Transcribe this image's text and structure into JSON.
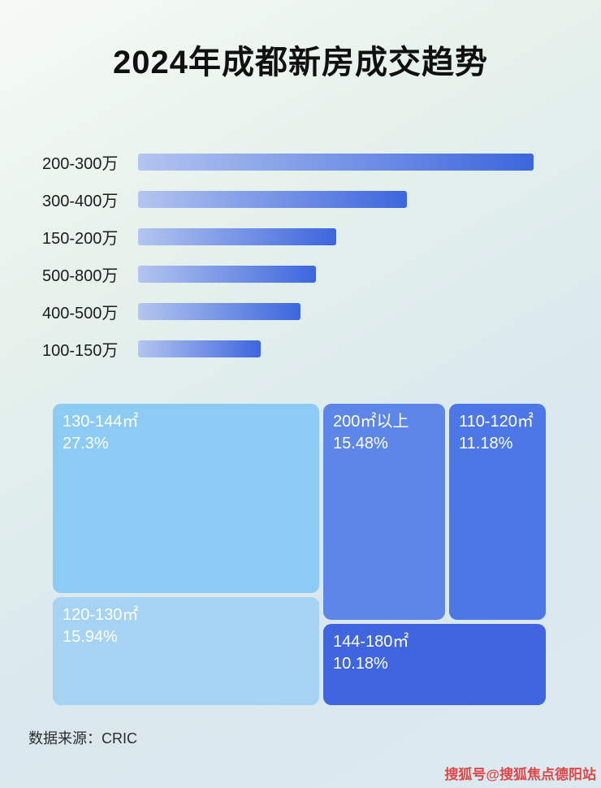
{
  "page": {
    "title": "2024年成都新房成交趋势",
    "source_text": "数据来源：CRIC",
    "watermark": "搜狐号@搜狐焦点德阳站"
  },
  "bar_chart": {
    "bar_gradient_start": "#b3c5ef",
    "bar_gradient_end": "#3d66de",
    "rows": [
      {
        "label": "200-300万",
        "value": 100
      },
      {
        "label": "300-400万",
        "value": 68
      },
      {
        "label": "150-200万",
        "value": 50
      },
      {
        "label": "500-800万",
        "value": 45
      },
      {
        "label": "400-500万",
        "value": 41
      },
      {
        "label": "100-150万",
        "value": 31
      }
    ]
  },
  "treemap": {
    "blocks": [
      {
        "label": "130-144㎡",
        "percent": "27.3%",
        "color": "#8ccbf4"
      },
      {
        "label": "120-130㎡",
        "percent": "15.94%",
        "color": "#a6d3f4"
      },
      {
        "label": "200㎡以上",
        "percent": "15.48%",
        "color": "#5c87e9"
      },
      {
        "label": "110-120㎡",
        "percent": "11.18%",
        "color": "#4d77e6"
      },
      {
        "label": "144-180㎡",
        "percent": "10.18%",
        "color": "#3f66df"
      }
    ]
  },
  "chart_data": [
    {
      "type": "bar",
      "orientation": "horizontal",
      "title": "2024年成都新房成交趋势",
      "categories": [
        "200-300万",
        "300-400万",
        "150-200万",
        "500-800万",
        "400-500万",
        "100-150万"
      ],
      "values_relative_pct_of_max": [
        100,
        68,
        50,
        45,
        41,
        31
      ],
      "note": "条形图无数值轴刻度，数值为各条相对最长条(200-300万)的长度比例",
      "xlabel": "",
      "ylabel": "",
      "grid": false,
      "legend": false
    },
    {
      "type": "treemap",
      "items": [
        {
          "label": "130-144㎡",
          "value": 27.3
        },
        {
          "label": "120-130㎡",
          "value": 15.94
        },
        {
          "label": "200㎡以上",
          "value": 15.48
        },
        {
          "label": "110-120㎡",
          "value": 11.18
        },
        {
          "label": "144-180㎡",
          "value": 10.18
        }
      ],
      "value_unit": "%",
      "legend": false
    }
  ]
}
